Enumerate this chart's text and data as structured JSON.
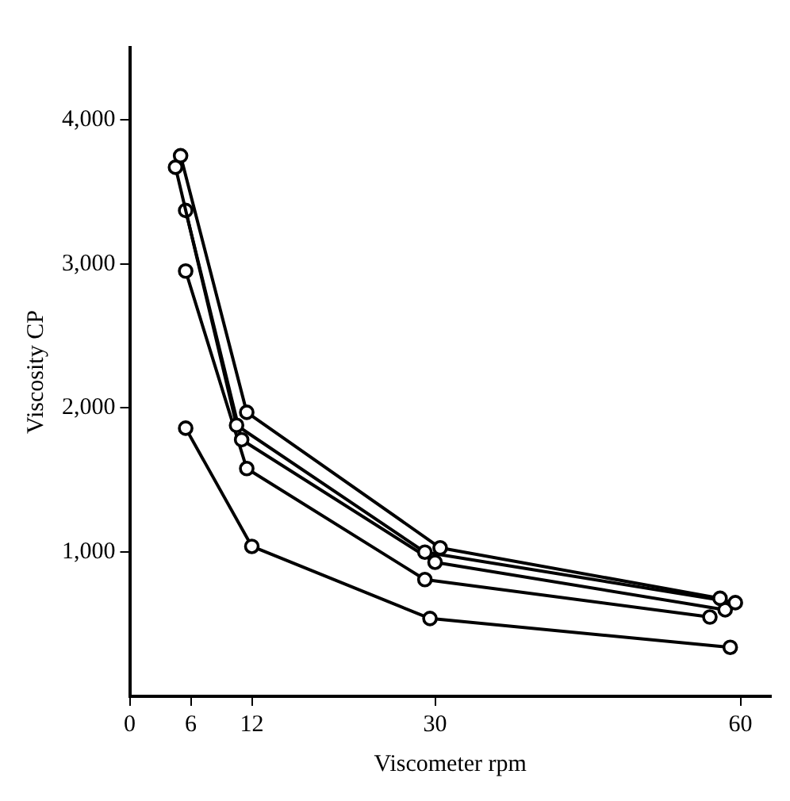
{
  "chart_data": {
    "type": "line",
    "xlabel": "Viscometer rpm",
    "ylabel": "Viscosity CP",
    "xlim": [
      0,
      63
    ],
    "xticks": [
      0,
      6,
      12,
      30,
      60
    ],
    "ylim": [
      0,
      4500
    ],
    "yticks": [
      {
        "value": 1000,
        "label": "1,000"
      },
      {
        "value": 2000,
        "label": "2,000"
      },
      {
        "value": 3000,
        "label": "3,000"
      },
      {
        "value": 4000,
        "label": "4,000"
      }
    ],
    "grid": false,
    "legend": false,
    "marker": "circle",
    "line_style": "solid",
    "series": [
      {
        "color": "#000000",
        "x": [
          5,
          11.5,
          30.5,
          58
        ],
        "values": [
          3750,
          1970,
          1030,
          680
        ]
      },
      {
        "color": "#000000",
        "x": [
          4.5,
          10.5,
          29,
          59.5
        ],
        "values": [
          3670,
          1880,
          1000,
          650
        ]
      },
      {
        "color": "#000000",
        "x": [
          5.5,
          11,
          30,
          58.5
        ],
        "values": [
          3370,
          1780,
          930,
          600
        ]
      },
      {
        "color": "#000000",
        "x": [
          5.5,
          11.5,
          29,
          57
        ],
        "values": [
          2950,
          1580,
          810,
          550
        ]
      },
      {
        "color": "#000000",
        "x": [
          5.5,
          12,
          29.5,
          59
        ],
        "values": [
          1860,
          1040,
          540,
          340
        ]
      }
    ]
  }
}
